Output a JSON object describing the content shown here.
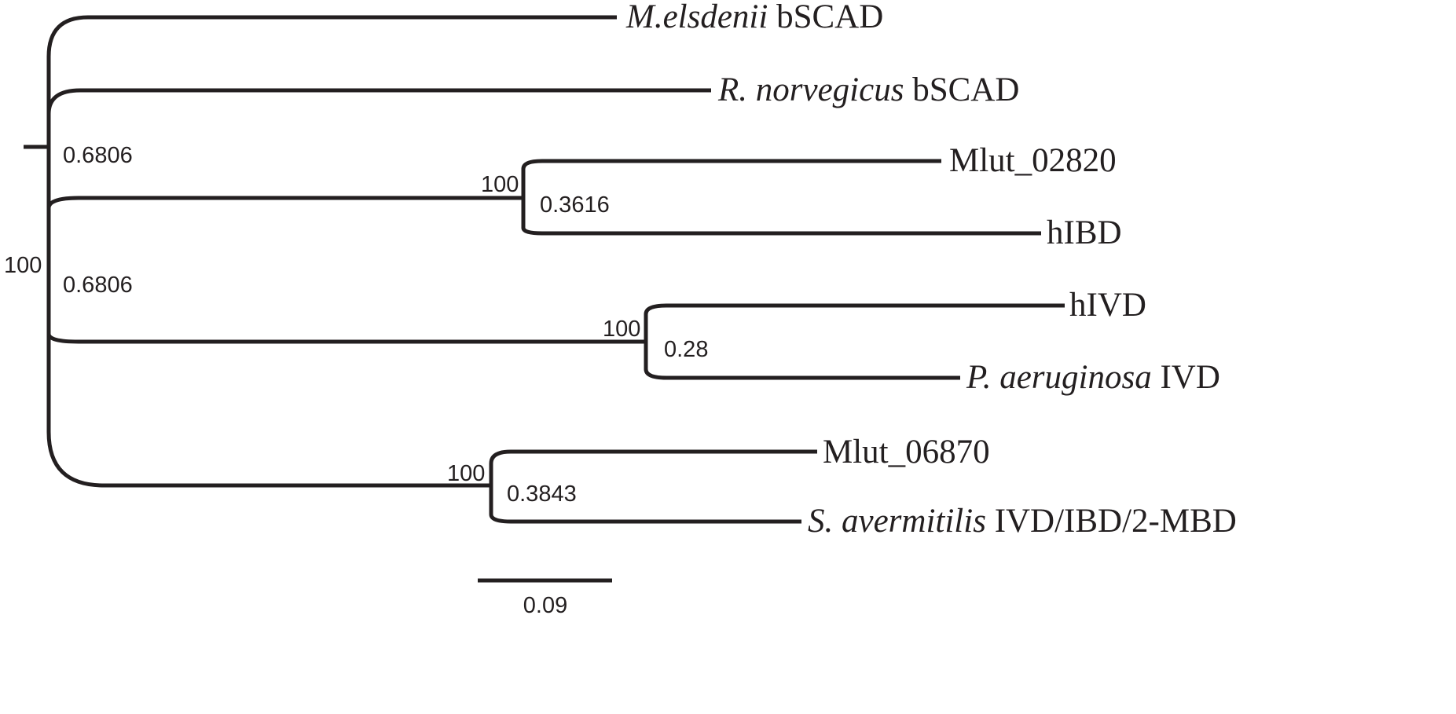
{
  "tree": {
    "leaves": [
      {
        "id": "melsdenii",
        "italic": "M.elsdenii",
        "rest": " bSCAD"
      },
      {
        "id": "rnorvegicus",
        "italic": "R. norvegicus",
        "rest": " bSCAD"
      },
      {
        "id": "mlut02820",
        "italic": "",
        "rest": "Mlut_02820"
      },
      {
        "id": "hibd",
        "italic": "",
        "rest": "hIBD"
      },
      {
        "id": "hivd",
        "italic": "",
        "rest": "hIVD"
      },
      {
        "id": "paeruginosa",
        "italic": "P. aeruginosa",
        "rest": " IVD"
      },
      {
        "id": "mlut06870",
        "italic": "",
        "rest": "Mlut_06870"
      },
      {
        "id": "savermitilis",
        "italic": "S. avermitilis",
        "rest": " IVD/IBD/2-MBD"
      }
    ],
    "root_support": "100",
    "root_branch_labels": [
      "0.6806",
      "0.6806"
    ],
    "clades": [
      {
        "id": "ibd-clade",
        "support": "100",
        "branch_length": "0.3616"
      },
      {
        "id": "ivd-clade",
        "support": "100",
        "branch_length": "0.28"
      },
      {
        "id": "mbd-clade",
        "support": "100",
        "branch_length": "0.3843"
      }
    ],
    "scale_bar": {
      "label": "0.09"
    }
  }
}
